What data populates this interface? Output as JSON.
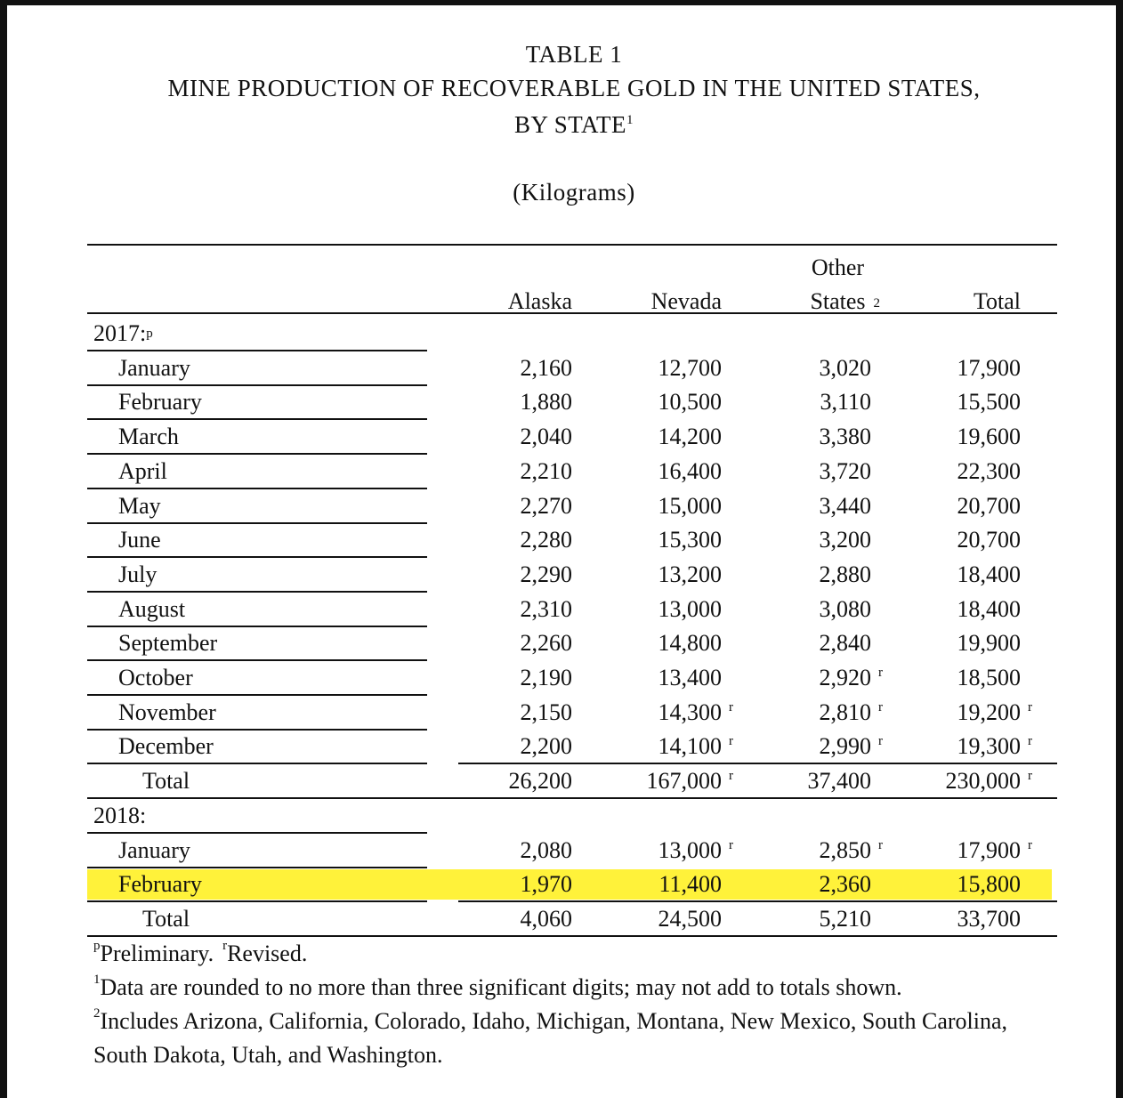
{
  "header": {
    "title": "TABLE 1",
    "subtitle": "MINE PRODUCTION OF RECOVERABLE GOLD IN THE UNITED STATES,",
    "subtitle2": "BY STATE",
    "subtitle2_note": "1",
    "units": "(Kilograms)"
  },
  "table": {
    "columns": [
      {
        "label": "Alaska"
      },
      {
        "label": "Nevada"
      },
      {
        "label": "Other States",
        "note": "2"
      },
      {
        "label": "Total"
      }
    ],
    "sections": [
      {
        "label": "2017:",
        "note": "p",
        "rows": [
          {
            "label": "January",
            "cells": [
              "2,160",
              "12,700",
              "3,020",
              "17,900"
            ]
          },
          {
            "label": "February",
            "cells": [
              "1,880",
              "10,500",
              "3,110",
              "15,500"
            ]
          },
          {
            "label": "March",
            "cells": [
              "2,040",
              "14,200",
              "3,380",
              "19,600"
            ]
          },
          {
            "label": "April",
            "cells": [
              "2,210",
              "16,400",
              "3,720",
              "22,300"
            ]
          },
          {
            "label": "May",
            "cells": [
              "2,270",
              "15,000",
              "3,440",
              "20,700"
            ]
          },
          {
            "label": "June",
            "cells": [
              "2,280",
              "15,300",
              "3,200",
              "20,700"
            ]
          },
          {
            "label": "July",
            "cells": [
              "2,290",
              "13,200",
              "2,880",
              "18,400"
            ]
          },
          {
            "label": "August",
            "cells": [
              "2,310",
              "13,000",
              "3,080",
              "18,400"
            ]
          },
          {
            "label": "September",
            "cells": [
              "2,260",
              "14,800",
              "2,840",
              "19,900"
            ]
          },
          {
            "label": "October",
            "cells": [
              "2,190",
              "13,400",
              {
                "value": "2,920",
                "note": "r"
              },
              "18,500"
            ]
          },
          {
            "label": "November",
            "cells": [
              "2,150",
              {
                "value": "14,300",
                "note": "r"
              },
              {
                "value": "2,810",
                "note": "r"
              },
              {
                "value": "19,200",
                "note": "r"
              }
            ]
          },
          {
            "label": "December",
            "cells": [
              "2,200",
              {
                "value": "14,100",
                "note": "r"
              },
              {
                "value": "2,990",
                "note": "r"
              },
              {
                "value": "19,300",
                "note": "r"
              }
            ]
          }
        ],
        "total": {
          "label": "Total",
          "cells": [
            "26,200",
            {
              "value": "167,000",
              "note": "r"
            },
            "37,400",
            {
              "value": "230,000",
              "note": "r"
            }
          ]
        }
      },
      {
        "label": "2018:",
        "rows": [
          {
            "label": "January",
            "cells": [
              "2,080",
              {
                "value": "13,000",
                "note": "r"
              },
              {
                "value": "2,850",
                "note": "r"
              },
              {
                "value": "17,900",
                "note": "r"
              }
            ]
          },
          {
            "label": "February",
            "highlight": true,
            "cells": [
              "1,970",
              "11,400",
              "2,360",
              "15,800"
            ]
          }
        ],
        "total": {
          "label": "Total",
          "cells": [
            "4,060",
            "24,500",
            "5,210",
            "33,700"
          ]
        }
      }
    ]
  },
  "footnotes": [
    [
      {
        "mark": "p",
        "text": "Preliminary."
      },
      {
        "mark": "r",
        "text": "Revised."
      }
    ],
    [
      {
        "mark": "1",
        "text": "Data are rounded to no more than three significant digits; may not add to totals shown."
      }
    ],
    [
      {
        "mark": "2",
        "text": "Includes Arizona, California, Colorado, Idaho, Michigan, Montana, New Mexico, South Carolina, South Dakota, Utah, and Washington."
      }
    ]
  ]
}
